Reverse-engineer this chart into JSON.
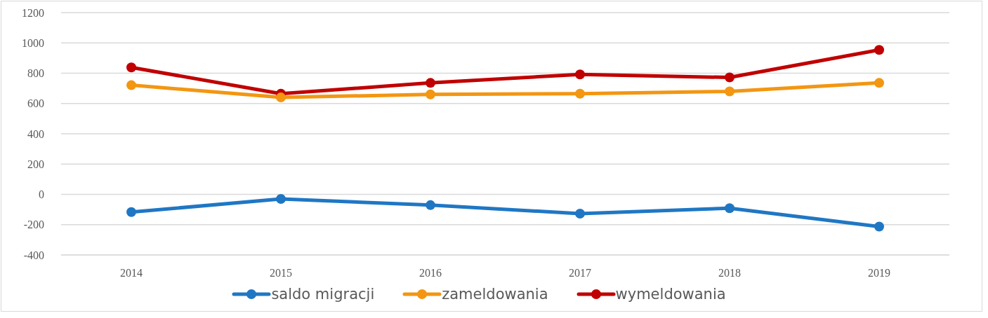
{
  "chart_data": {
    "type": "line",
    "categories": [
      "2014",
      "2015",
      "2016",
      "2017",
      "2018",
      "2019"
    ],
    "series": [
      {
        "name": "saldo migracji",
        "color": "#1f77c4",
        "values": [
          -117,
          -30,
          -71,
          -127,
          -91,
          -213
        ]
      },
      {
        "name": "zameldowania",
        "color": "#f39612",
        "values": [
          721,
          640,
          660,
          665,
          680,
          736
        ]
      },
      {
        "name": "wymeldowania",
        "color": "#c00000",
        "values": [
          838,
          665,
          736,
          792,
          772,
          954
        ]
      }
    ],
    "ylim": [
      -400,
      1200
    ],
    "yticks": [
      -400,
      -200,
      0,
      200,
      400,
      600,
      800,
      1000,
      1200
    ],
    "grid": "y",
    "legend": "bottom",
    "marker": "circle",
    "line_style": "solid"
  }
}
